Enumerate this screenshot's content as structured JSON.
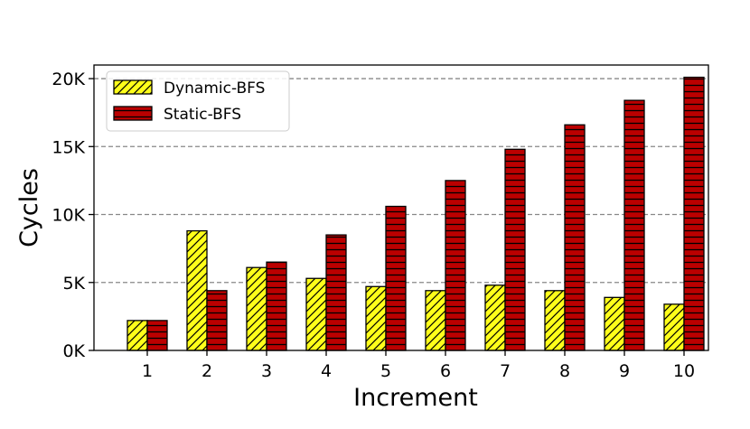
{
  "chart_data": {
    "type": "bar",
    "title": "",
    "xlabel": "Increment",
    "ylabel": "Cycles",
    "categories": [
      "1",
      "2",
      "3",
      "4",
      "5",
      "6",
      "7",
      "8",
      "9",
      "10"
    ],
    "ylim": [
      0,
      21000
    ],
    "yticks": [
      0,
      5000,
      10000,
      15000,
      20000
    ],
    "ytick_labels": [
      "0K",
      "5K",
      "10K",
      "15K",
      "20K"
    ],
    "grid": "horizontal dashed",
    "legend_position": "top-left",
    "series": [
      {
        "name": "Dynamic-BFS",
        "color": "#ffff1a",
        "hatch": "diagonal",
        "values": [
          2200,
          8800,
          6100,
          5300,
          4700,
          4400,
          4800,
          4400,
          3900,
          3400
        ]
      },
      {
        "name": "Static-BFS",
        "color": "#bb0000",
        "hatch": "horizontal",
        "values": [
          2200,
          4400,
          6500,
          8500,
          10600,
          12500,
          14800,
          16600,
          18400,
          20100
        ]
      }
    ]
  }
}
